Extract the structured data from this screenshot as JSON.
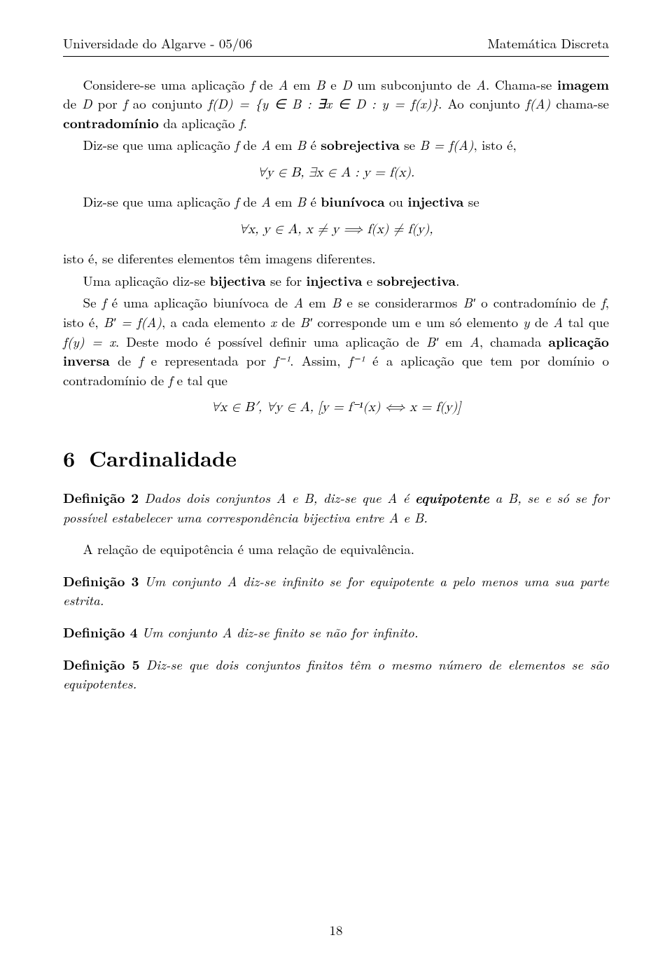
{
  "header": {
    "left": "Universidade do Algarve - 05/06",
    "right": "Matemática Discreta"
  },
  "body": {
    "p1a": "Considere-se uma aplicação ",
    "p1b": " de ",
    "p1c": " em ",
    "p1d": " e ",
    "p1e": " um subconjunto de ",
    "p1f": ". Chama-se ",
    "imagem": "imagem",
    "p1g": " de ",
    "p1h": " por ",
    "p1i": " ao conjunto ",
    "fD": "f(D) = {y ∈ B : ∃x ∈ D : y = f(x)}",
    "p1j": ". Ao conjunto ",
    "fA": "f(A)",
    "p1k": " chama-se ",
    "contradominio": "contradomínio",
    "p1l": " da aplicação ",
    "p1m": ".",
    "p2a": "Diz-se que uma aplicação ",
    "p2b": " de ",
    "p2c": " em ",
    "p2d": " é ",
    "sobrejectiva": "sobrejectiva",
    "p2e": " se ",
    "BfA": "B = f(A)",
    "p2f": ", isto é,",
    "disp1": "∀y ∈ B, ∃x ∈ A : y = f(x).",
    "p3a": "Diz-se que uma aplicação ",
    "p3b": " de ",
    "p3c": " em ",
    "p3d": " é ",
    "biunivoca": "biunívoca",
    "p3e": " ou ",
    "injectiva": "injectiva",
    "p3f": " se",
    "disp2": "∀x, y ∈ A, x ≠ y ⟹ f(x) ≠ f(y),",
    "p4": "isto é, se diferentes elementos têm imagens diferentes.",
    "p5a": "Uma aplicação diz-se ",
    "bijectiva": "bijectiva",
    "p5b": " se for ",
    "p5c": " e ",
    "p5d": ".",
    "p6a": "Se ",
    "p6b": " é uma aplicação biunívoca de ",
    "p6c": " em ",
    "p6d": " e se considerarmos ",
    "p6e": " o contradomínio de ",
    "p6f": ", isto é, ",
    "BprimeFA": "B′ = f(A)",
    "p6g": ", a cada elemento ",
    "p6h": " de ",
    "p6i": " corresponde um e um só elemento ",
    "p6j": " de ",
    "p6k": " tal que ",
    "fyex": "f(y) = x",
    "p6l": ". Deste modo é possível definir uma aplicação de ",
    "p6m": " em ",
    "p6n": ", chamada ",
    "aplicinv": "aplicação inversa",
    "p6o": " de ",
    "p6p": " e representada por ",
    "finv": "f⁻¹",
    "p6q": ". Assim, ",
    "p6r": " é a aplicação que tem por domínio o contradomínio de ",
    "p6s": " e tal que",
    "disp3": "∀x ∈ B′, ∀y ∈ A, [y = f⁻¹(x) ⟺ x = f(y)]"
  },
  "section": {
    "num": "6",
    "title": "Cardinalidade"
  },
  "defs": {
    "d2label": "Definição 2",
    "d2a": "Dados dois conjuntos ",
    "d2b": " e ",
    "d2c": ", diz-se que ",
    "d2d": " é ",
    "equipotente": "equipotente",
    "d2e": " a ",
    "d2f": ", se e só se for possível estabelecer uma correspondência bijectiva entre ",
    "d2g": " e ",
    "d2h": ".",
    "equivrel": "A relação de equipotência é uma relação de equivalência.",
    "d3label": "Definição 3",
    "d3a": "Um conjunto ",
    "d3b": " diz-se infinito se for equipotente a pelo menos uma sua parte estrita.",
    "d4label": "Definição 4",
    "d4a": "Um conjunto ",
    "d4b": " diz-se finito se não for infinito.",
    "d5label": "Definição 5",
    "d5": "Diz-se que dois conjuntos finitos têm o mesmo número de elementos se são equipotentes."
  },
  "sym": {
    "f": "f",
    "A": "A",
    "B": "B",
    "D": "D",
    "x": "x",
    "y": "y",
    "Bp": "B′"
  },
  "page_number": "18"
}
